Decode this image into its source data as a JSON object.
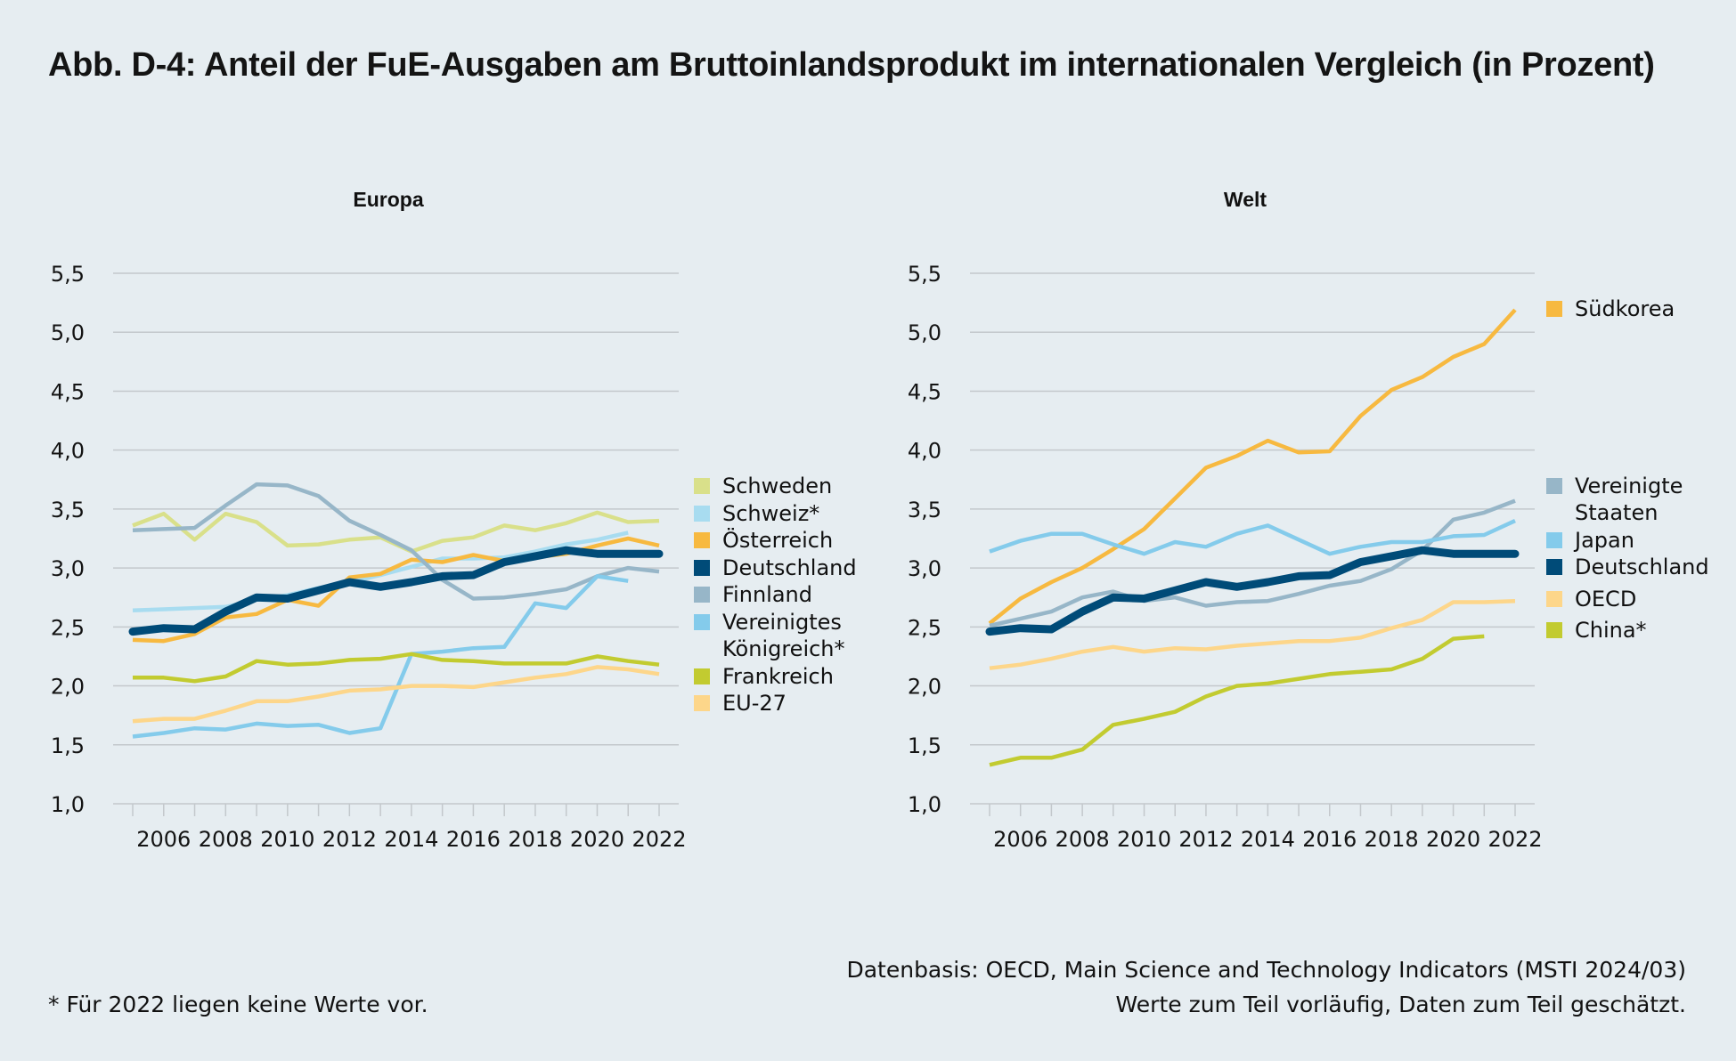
{
  "title": "Abb. D-4: Anteil der FuE-Ausgaben am Bruttoinlandsprodukt im internationalen Vergleich (in Prozent)",
  "footer": {
    "source": "Datenbasis: OECD, Main Science and Technology Indicators (MSTI 2024/03)",
    "note": "Werte zum Teil vorläufig, Daten zum Teil geschätzt.",
    "footnote": "* Für 2022 liegen keine Werte vor."
  },
  "chart_data": [
    {
      "type": "line",
      "title": "Europa",
      "xlabel": "",
      "ylabel": "",
      "ylim": [
        1.0,
        5.5
      ],
      "yticks": [
        1.0,
        1.5,
        2.0,
        2.5,
        3.0,
        3.5,
        4.0,
        4.5,
        5.0,
        5.5
      ],
      "ytick_labels": [
        "1,0",
        "1,5",
        "2,0",
        "2,5",
        "3,0",
        "3,5",
        "4,0",
        "4,5",
        "5,0",
        "5,5"
      ],
      "x": [
        2005,
        2006,
        2007,
        2008,
        2009,
        2010,
        2011,
        2012,
        2013,
        2014,
        2015,
        2016,
        2017,
        2018,
        2019,
        2020,
        2021,
        2022
      ],
      "xtick_labels": [
        "2006",
        "2008",
        "2010",
        "2012",
        "2014",
        "2016",
        "2018",
        "2020",
        "2022"
      ],
      "grid": true,
      "legend_position": "right",
      "series": [
        {
          "name": "Schweden",
          "color": "#d9e08a",
          "values": [
            3.36,
            3.46,
            3.24,
            3.46,
            3.39,
            3.19,
            3.2,
            3.24,
            3.26,
            3.14,
            3.23,
            3.26,
            3.36,
            3.32,
            3.38,
            3.47,
            3.39,
            3.4
          ]
        },
        {
          "name": "Schweiz*",
          "color": "#a8dcf0",
          "values": [
            2.64,
            2.65,
            2.66,
            2.67,
            2.73,
            2.77,
            2.83,
            2.88,
            2.94,
            3.01,
            3.08,
            3.08,
            3.09,
            3.14,
            3.2,
            3.24,
            3.3,
            null
          ]
        },
        {
          "name": "Österreich",
          "color": "#f7b940",
          "values": [
            2.39,
            2.38,
            2.44,
            2.58,
            2.61,
            2.73,
            2.68,
            2.92,
            2.95,
            3.07,
            3.05,
            3.11,
            3.06,
            3.09,
            3.12,
            3.19,
            3.25,
            3.19
          ]
        },
        {
          "name": "Deutschland",
          "color": "#004b78",
          "bold": true,
          "values": [
            2.46,
            2.49,
            2.48,
            2.63,
            2.75,
            2.74,
            2.81,
            2.88,
            2.84,
            2.88,
            2.93,
            2.94,
            3.05,
            3.1,
            3.15,
            3.12,
            3.12,
            3.12
          ]
        },
        {
          "name": "Finnland",
          "color": "#97b6c8",
          "values": [
            3.32,
            3.33,
            3.34,
            3.53,
            3.71,
            3.7,
            3.61,
            3.4,
            3.28,
            3.15,
            2.9,
            2.74,
            2.75,
            2.78,
            2.82,
            2.93,
            3.0,
            2.97
          ]
        },
        {
          "name": "Vereinigtes\nKönigreich*",
          "color": "#84cbeb",
          "values": [
            1.57,
            1.6,
            1.64,
            1.63,
            1.68,
            1.66,
            1.67,
            1.6,
            1.64,
            2.27,
            2.29,
            2.32,
            2.33,
            2.7,
            2.66,
            2.93,
            2.89,
            null
          ]
        },
        {
          "name": "Frankreich",
          "color": "#c2cb30",
          "values": [
            2.07,
            2.07,
            2.04,
            2.08,
            2.21,
            2.18,
            2.19,
            2.22,
            2.23,
            2.27,
            2.22,
            2.21,
            2.19,
            2.19,
            2.19,
            2.25,
            2.21,
            2.18
          ]
        },
        {
          "name": "EU-27",
          "color": "#fdd68a",
          "values": [
            1.7,
            1.72,
            1.72,
            1.79,
            1.87,
            1.87,
            1.91,
            1.96,
            1.97,
            2.0,
            2.0,
            1.99,
            2.03,
            2.07,
            2.1,
            2.16,
            2.14,
            2.1
          ]
        }
      ]
    },
    {
      "type": "line",
      "title": "Welt",
      "xlabel": "",
      "ylabel": "",
      "ylim": [
        1.0,
        5.5
      ],
      "yticks": [
        1.0,
        1.5,
        2.0,
        2.5,
        3.0,
        3.5,
        4.0,
        4.5,
        5.0,
        5.5
      ],
      "ytick_labels": [
        "1,0",
        "1,5",
        "2,0",
        "2,5",
        "3,0",
        "3,5",
        "4,0",
        "4,5",
        "5,0",
        "5,5"
      ],
      "x": [
        2005,
        2006,
        2007,
        2008,
        2009,
        2010,
        2011,
        2012,
        2013,
        2014,
        2015,
        2016,
        2017,
        2018,
        2019,
        2020,
        2021,
        2022
      ],
      "xtick_labels": [
        "2006",
        "2008",
        "2010",
        "2012",
        "2014",
        "2016",
        "2018",
        "2020",
        "2022"
      ],
      "grid": true,
      "legend_position": "right",
      "series": [
        {
          "name": "Südkorea",
          "color": "#f7b940",
          "values": [
            2.53,
            2.74,
            2.88,
            3.0,
            3.16,
            3.33,
            3.59,
            3.85,
            3.95,
            4.08,
            3.98,
            3.99,
            4.29,
            4.51,
            4.62,
            4.79,
            4.9,
            5.19
          ]
        },
        {
          "name": "Vereinigte\nStaaten",
          "color": "#97b6c8",
          "values": [
            2.51,
            2.57,
            2.63,
            2.75,
            2.8,
            2.72,
            2.75,
            2.68,
            2.71,
            2.72,
            2.78,
            2.85,
            2.89,
            2.99,
            3.15,
            3.41,
            3.47,
            3.57
          ]
        },
        {
          "name": "Japan",
          "color": "#84cbeb",
          "values": [
            3.14,
            3.23,
            3.29,
            3.29,
            3.2,
            3.12,
            3.22,
            3.18,
            3.29,
            3.36,
            3.24,
            3.12,
            3.18,
            3.22,
            3.22,
            3.27,
            3.28,
            3.4
          ]
        },
        {
          "name": "Deutschland",
          "color": "#004b78",
          "bold": true,
          "values": [
            2.46,
            2.49,
            2.48,
            2.63,
            2.75,
            2.74,
            2.81,
            2.88,
            2.84,
            2.88,
            2.93,
            2.94,
            3.05,
            3.1,
            3.15,
            3.12,
            3.12,
            3.12
          ]
        },
        {
          "name": "OECD",
          "color": "#fdd68a",
          "values": [
            2.15,
            2.18,
            2.23,
            2.29,
            2.33,
            2.29,
            2.32,
            2.31,
            2.34,
            2.36,
            2.38,
            2.38,
            2.41,
            2.49,
            2.56,
            2.71,
            2.71,
            2.72
          ]
        },
        {
          "name": "China*",
          "color": "#c2cb30",
          "values": [
            1.33,
            1.39,
            1.39,
            1.46,
            1.67,
            1.72,
            1.78,
            1.91,
            2.0,
            2.02,
            2.06,
            2.1,
            2.12,
            2.14,
            2.23,
            2.4,
            2.42,
            null
          ]
        }
      ]
    }
  ]
}
